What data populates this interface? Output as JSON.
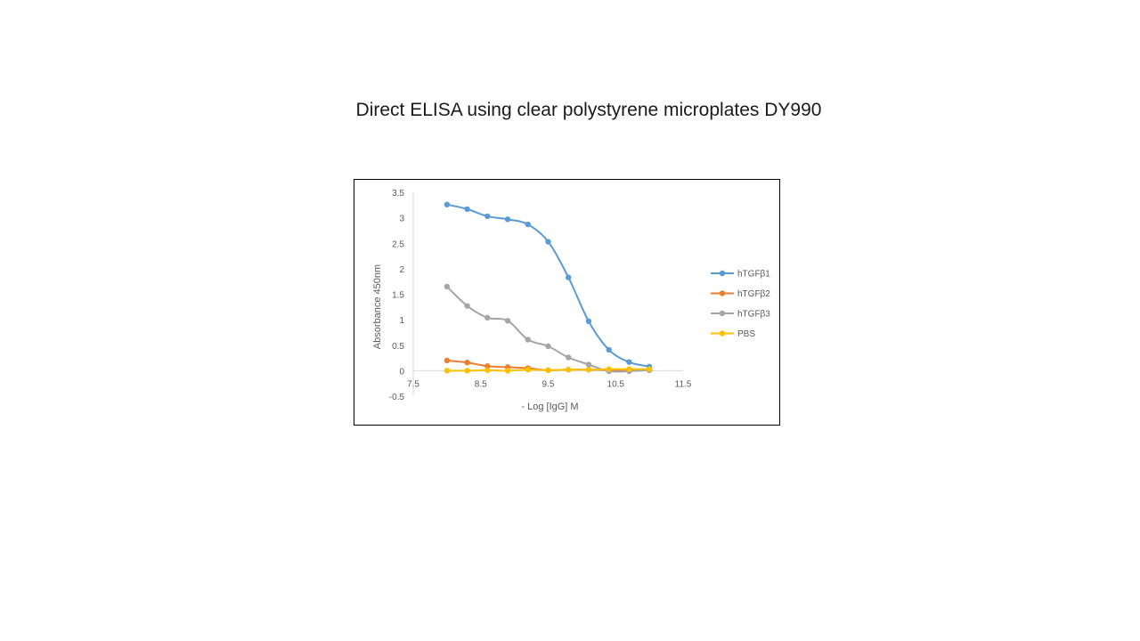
{
  "slide": {
    "title": "Direct ELISA using clear polystyrene microplates DY990"
  },
  "chart_data": {
    "type": "line",
    "title": "",
    "xlabel": "- Log [IgG] M",
    "ylabel": "Absorbance 450nm",
    "xlim": [
      7.5,
      11.5
    ],
    "ylim": [
      -0.5,
      3.5
    ],
    "x_ticks": [
      "7.5",
      "8.5",
      "9.5",
      "10.5",
      "11.5"
    ],
    "y_ticks": [
      "3.5",
      "3",
      "2.5",
      "2",
      "1.5",
      "1",
      "0.5",
      "0",
      "-0.5"
    ],
    "grid": false,
    "legend_position": "right",
    "smooth": true,
    "series": [
      {
        "name": "hTGFβ1",
        "color": "#5B9BD5",
        "x": [
          8.0,
          8.3,
          8.6,
          8.9,
          9.2,
          9.5,
          9.8,
          10.1,
          10.4,
          10.7,
          11.0
        ],
        "values": [
          3.26,
          3.17,
          3.03,
          2.97,
          2.87,
          2.53,
          1.83,
          0.97,
          0.41,
          0.17,
          0.08
        ]
      },
      {
        "name": "hTGFβ2",
        "color": "#ED7D31",
        "x": [
          8.0,
          8.3,
          8.6,
          8.9,
          9.2,
          9.5,
          9.8,
          10.1,
          10.4,
          10.7,
          11.0
        ],
        "values": [
          0.2,
          0.16,
          0.09,
          0.07,
          0.05,
          0.01,
          0.02,
          0.02,
          0.01,
          0.01,
          0.02
        ]
      },
      {
        "name": "hTGFβ3",
        "color": "#A5A5A5",
        "x": [
          8.0,
          8.3,
          8.6,
          8.9,
          9.2,
          9.5,
          9.8,
          10.1,
          10.4,
          10.7,
          11.0
        ],
        "values": [
          1.65,
          1.27,
          1.04,
          0.98,
          0.61,
          0.48,
          0.26,
          0.12,
          -0.01,
          -0.01,
          0.01
        ]
      },
      {
        "name": "PBS",
        "color": "#FFC000",
        "x": [
          8.0,
          8.3,
          8.6,
          8.9,
          9.2,
          9.5,
          9.8,
          10.1,
          10.4,
          10.7,
          11.0
        ],
        "values": [
          0.0,
          0.0,
          0.01,
          0.0,
          0.02,
          0.01,
          0.02,
          0.02,
          0.03,
          0.03,
          0.03
        ]
      }
    ]
  }
}
